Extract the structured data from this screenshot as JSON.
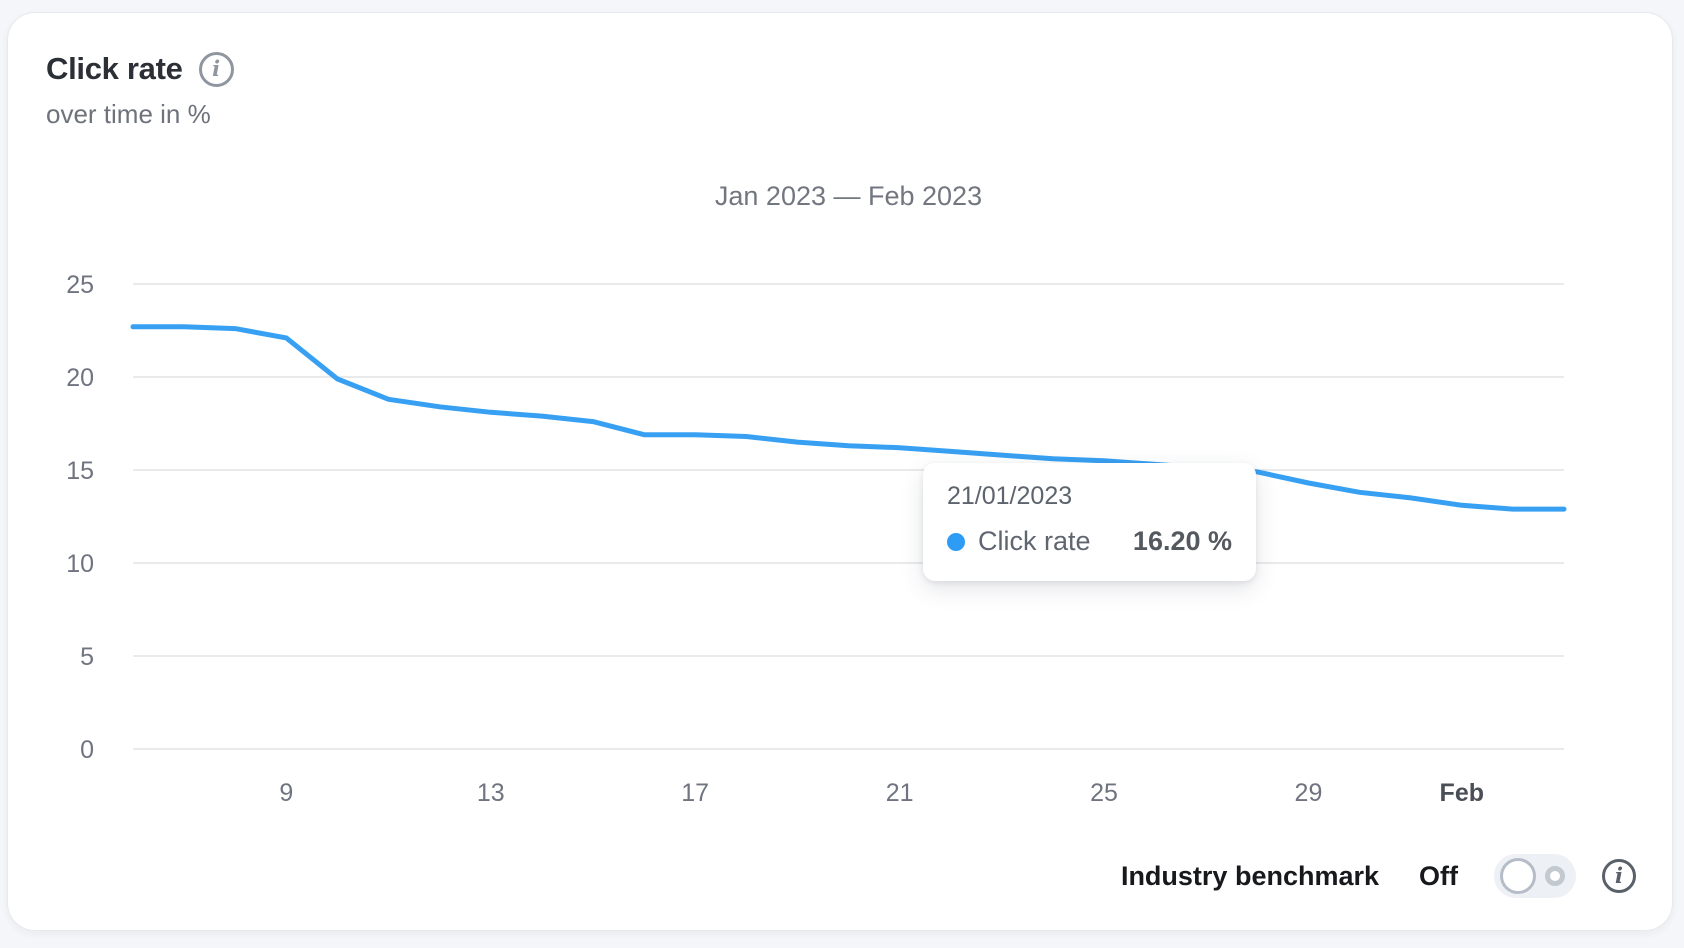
{
  "card": {
    "title": "Click rate",
    "subtitle": "over time in %"
  },
  "icons": {
    "info_glyph": "i"
  },
  "chart_data": {
    "type": "line",
    "title": "Jan 2023 — Feb 2023",
    "xlabel": "",
    "ylabel": "Click rate over time in %",
    "ylim": [
      0,
      25
    ],
    "y_ticks": [
      0,
      5,
      10,
      15,
      20,
      25
    ],
    "grid": "horizontal",
    "x": [
      "06/01/2023",
      "07/01/2023",
      "08/01/2023",
      "09/01/2023",
      "10/01/2023",
      "11/01/2023",
      "12/01/2023",
      "13/01/2023",
      "14/01/2023",
      "15/01/2023",
      "16/01/2023",
      "17/01/2023",
      "18/01/2023",
      "19/01/2023",
      "20/01/2023",
      "21/01/2023",
      "22/01/2023",
      "23/01/2023",
      "24/01/2023",
      "25/01/2023",
      "26/01/2023",
      "27/01/2023",
      "28/01/2023",
      "29/01/2023",
      "30/01/2023",
      "31/01/2023",
      "01/02/2023",
      "02/02/2023",
      "03/02/2023"
    ],
    "x_ticks": [
      {
        "index": 3,
        "label": "9",
        "bold": false
      },
      {
        "index": 7,
        "label": "13",
        "bold": false
      },
      {
        "index": 11,
        "label": "17",
        "bold": false
      },
      {
        "index": 15,
        "label": "21",
        "bold": false
      },
      {
        "index": 19,
        "label": "25",
        "bold": false
      },
      {
        "index": 23,
        "label": "29",
        "bold": false
      },
      {
        "index": 26,
        "label": "Feb",
        "bold": true
      }
    ],
    "series": [
      {
        "name": "Click rate",
        "color": "#38a0f2",
        "values": [
          22.7,
          22.7,
          22.6,
          22.1,
          19.9,
          18.8,
          18.4,
          18.1,
          17.9,
          17.6,
          16.9,
          16.9,
          16.8,
          16.5,
          16.3,
          16.2,
          16.0,
          15.8,
          15.6,
          15.5,
          15.3,
          15.1,
          14.9,
          14.3,
          13.8,
          13.5,
          13.1,
          12.9,
          12.9
        ]
      }
    ]
  },
  "tooltip": {
    "date": "21/01/2023",
    "series": "Click rate",
    "value": "16.20 %"
  },
  "footer": {
    "label": "Industry benchmark",
    "state": "Off"
  },
  "colors": {
    "line": "#38a0f2",
    "dot": "#2e9cf4",
    "grid": "#e9eaec",
    "axis_label": "#6f7480",
    "axis_label_bold": "#4a4f57",
    "page_bg": "#f4f6f9",
    "card_bg": "#ffffff"
  }
}
